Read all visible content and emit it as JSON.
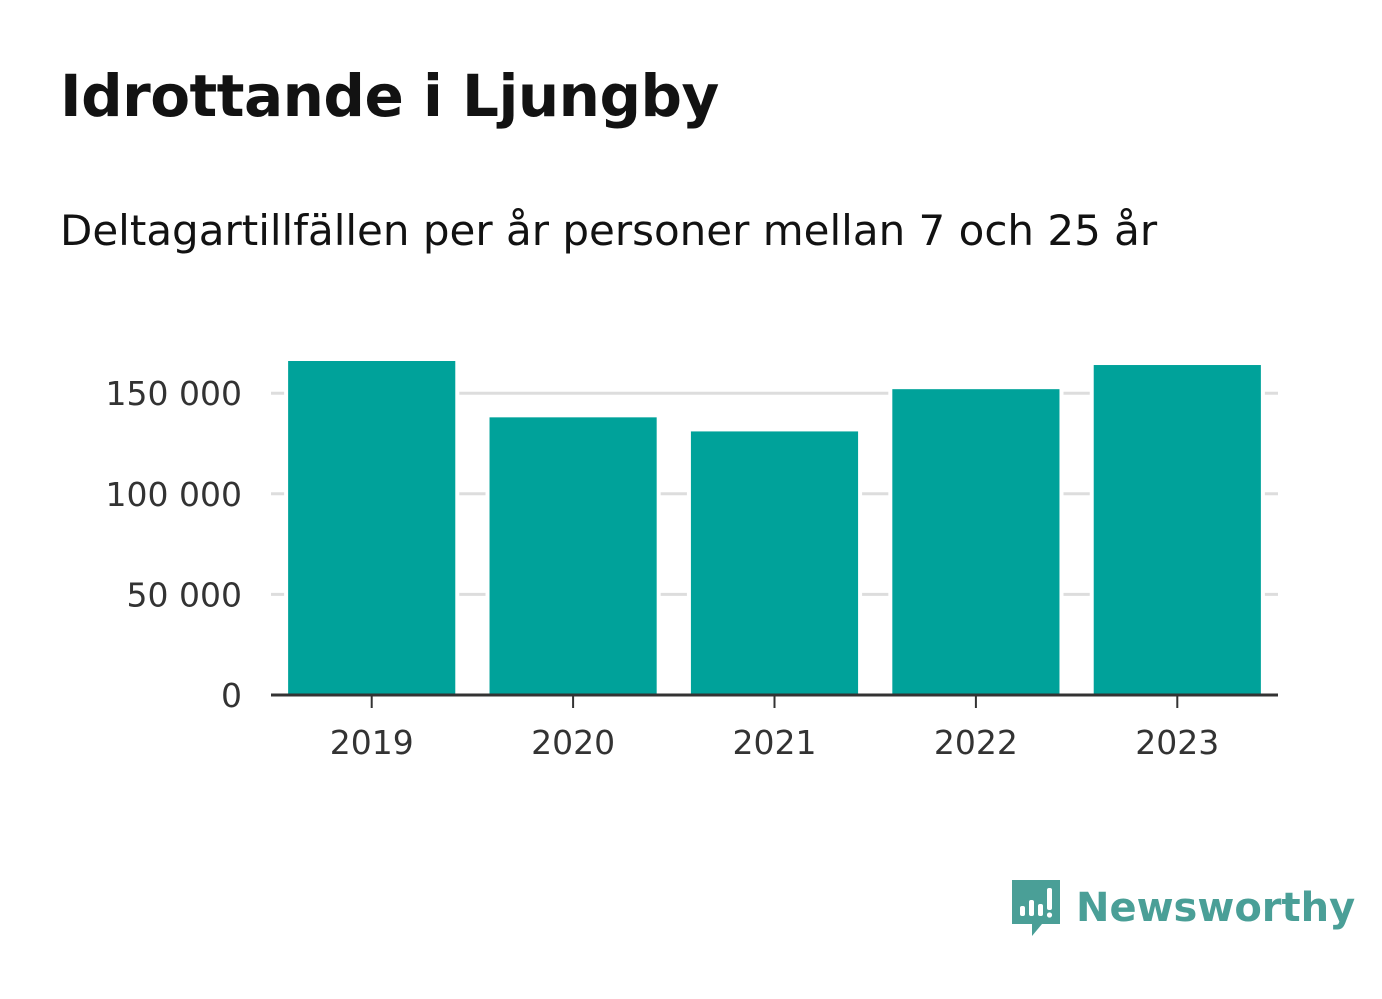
{
  "title": "Idrottande i Ljungby",
  "subtitle": "Deltagartillfällen per år personer mellan 7 och 25 år",
  "brand": {
    "name": "Newsworthy",
    "icon": "newsworthy-logo-icon",
    "color": "#4a9f97"
  },
  "colors": {
    "bar": "#00a29a",
    "grid": "#dddddd",
    "axis": "#333333",
    "text": "#121212"
  },
  "chart_data": {
    "type": "bar",
    "title": "Idrottande i Ljungby",
    "subtitle": "Deltagartillfällen per år personer mellan 7 och 25 år",
    "categories": [
      "2019",
      "2020",
      "2021",
      "2022",
      "2023"
    ],
    "values": [
      166000,
      138000,
      131000,
      152000,
      164000
    ],
    "ylim": [
      0,
      166000
    ],
    "yticks": [
      0,
      50000,
      100000,
      150000
    ],
    "ytick_labels": [
      "0",
      "50 000",
      "100 000",
      "150 000"
    ],
    "xlabel": "",
    "ylabel": "",
    "grid": true,
    "legend": "none"
  }
}
